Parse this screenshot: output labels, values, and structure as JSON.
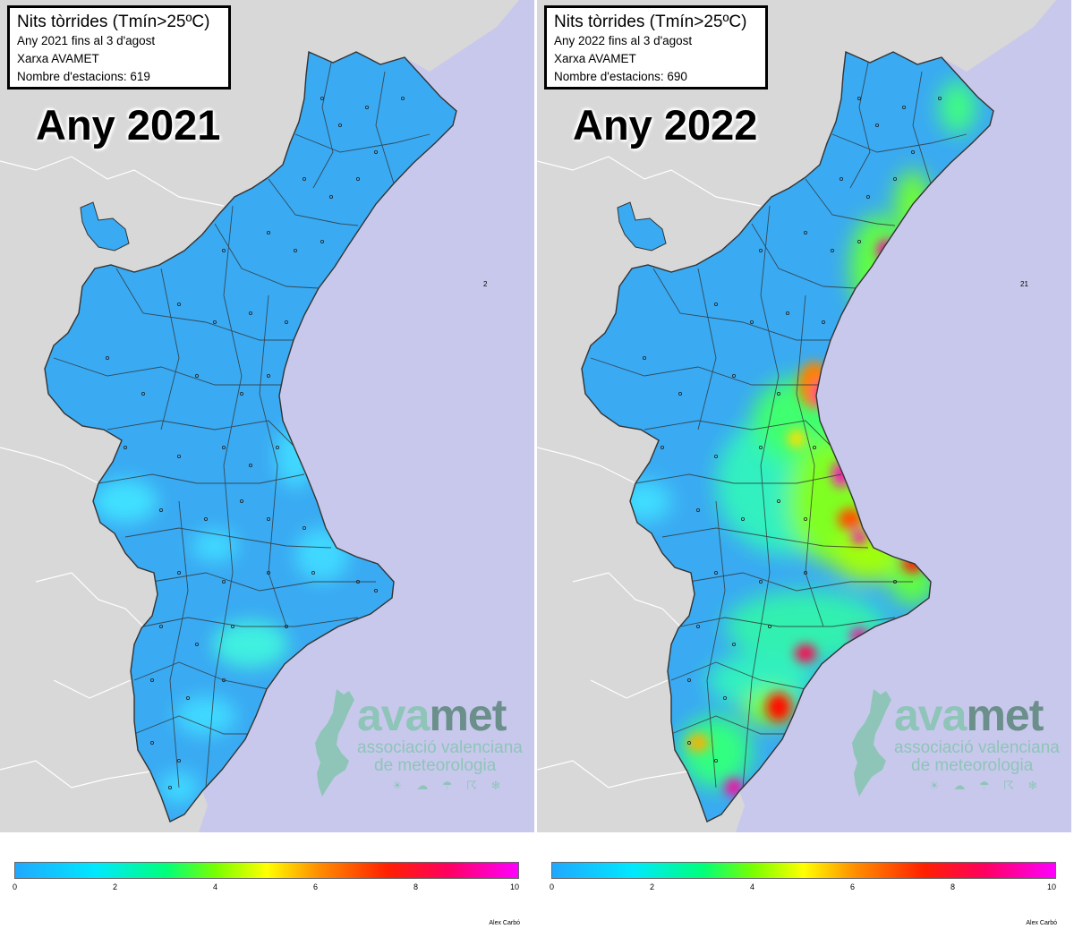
{
  "panels": [
    {
      "title": "Nits tòrrides (Tmín>25ºC)",
      "subtitle": "Any 2021 fins al 3 d'agost",
      "network": "Xarxa AVAMET",
      "stations": "Nombre d'estacions: 619",
      "year_label": "Any 2021",
      "sea_label": "2",
      "colorbar_ticks": [
        "0",
        "2",
        "4",
        "6",
        "8",
        "10"
      ]
    },
    {
      "title": "Nits tòrrides (Tmín>25ºC)",
      "subtitle": "Any 2022 fins al 3 d'agost",
      "network": "Xarxa AVAMET",
      "stations": "Nombre d'estacions: 690",
      "year_label": "Any 2022",
      "sea_label": "21",
      "colorbar_ticks": [
        "0",
        "2",
        "4",
        "6",
        "8",
        "10"
      ]
    }
  ],
  "logo": {
    "name_a": "ava",
    "name_b": "met",
    "line1": "associació valenciana",
    "line2": "de meteorologia",
    "icons": "☀ ☁ ☂ ☈ ❄"
  },
  "credit": "Alex Carbó",
  "colors": {
    "sea": "#c8c8ec",
    "land_outside": "#d8d8d8",
    "region_base": "#3aaaf2",
    "border": "#333333"
  }
}
